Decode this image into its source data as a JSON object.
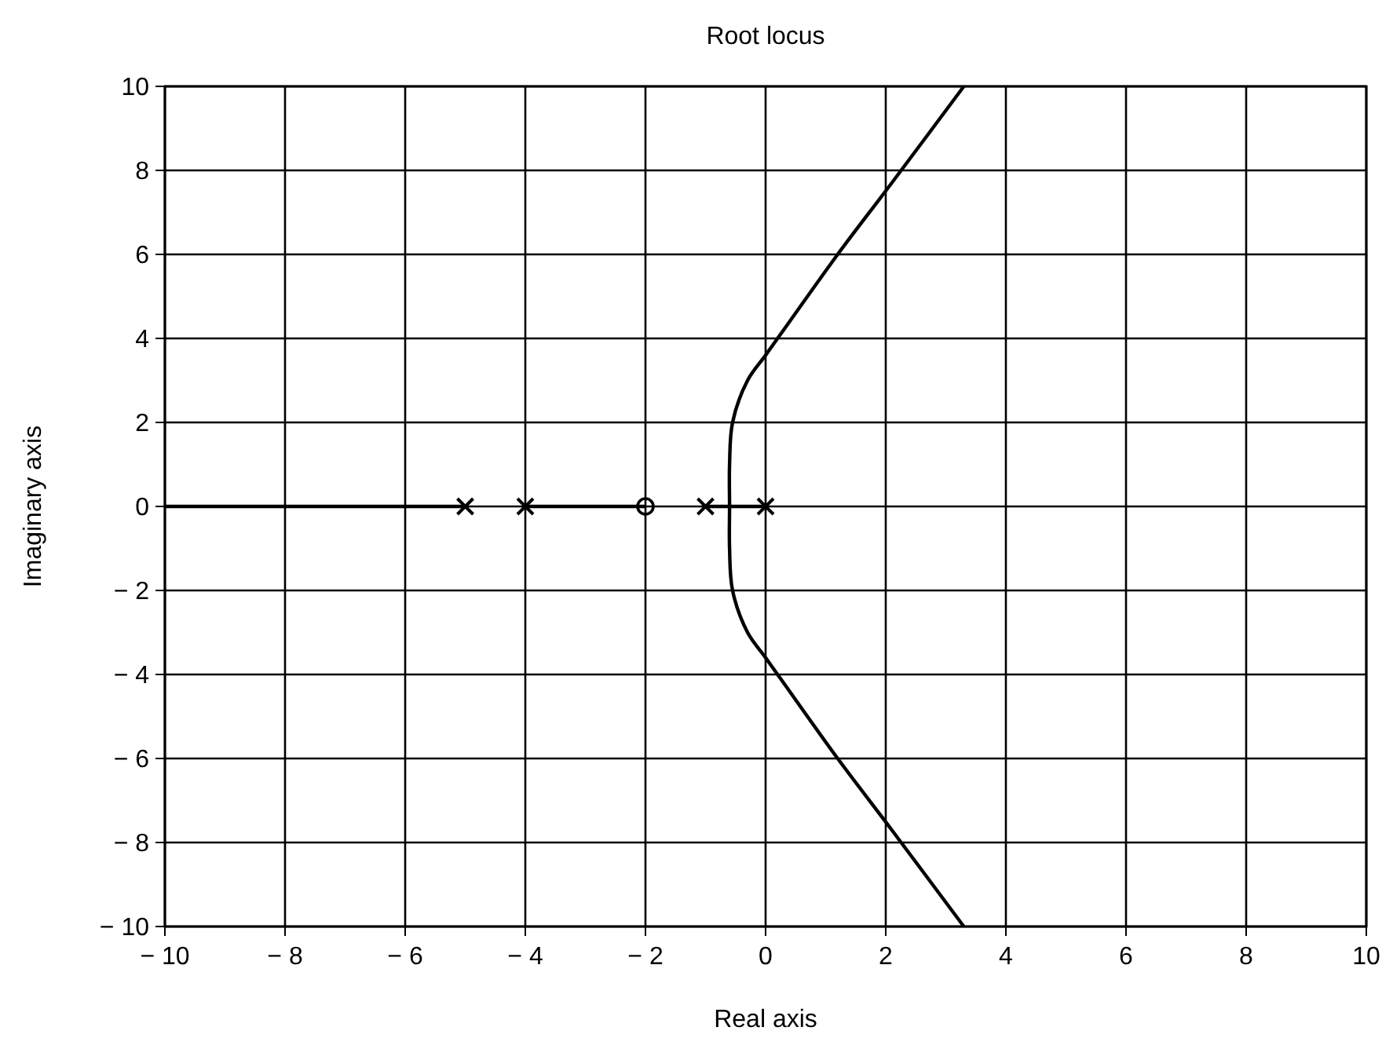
{
  "chart_data": {
    "type": "line",
    "title": "Root locus",
    "xlabel": "Real axis",
    "ylabel": "Imaginary axis",
    "xlim": [
      -10,
      10
    ],
    "ylim": [
      -10,
      10
    ],
    "xticks": [
      -10,
      -8,
      -6,
      -4,
      -2,
      0,
      2,
      4,
      6,
      8,
      10
    ],
    "yticks": [
      -10,
      -8,
      -6,
      -4,
      -2,
      0,
      2,
      4,
      6,
      8,
      10
    ],
    "grid": true,
    "series": [
      {
        "color": "#000000",
        "marker": "none",
        "x": [
          -10,
          -5,
          -4.5,
          -4,
          -2,
          -1.5,
          -1,
          0
        ],
        "values": [
          0,
          0,
          null,
          0,
          0,
          null,
          0,
          0
        ]
      },
      {
        "color": "#000000",
        "marker": "none",
        "x": [
          3.3,
          2.1,
          1.2,
          0.3,
          0,
          -0.3,
          -0.55,
          -0.6,
          -0.6,
          -0.6,
          -0.55,
          -0.3,
          0,
          0.3,
          1.2,
          2.1,
          3.3
        ],
        "values": [
          -10,
          -7.7,
          -6,
          -4.2,
          -3.6,
          -3,
          -2,
          -1,
          0,
          1,
          2,
          3,
          3.6,
          4.2,
          6,
          7.7,
          10
        ]
      },
      {
        "type": "scatter",
        "color": "#000000",
        "marker": "cross",
        "x": [
          -5,
          -4,
          -1,
          0
        ],
        "values": [
          0,
          0,
          0,
          0
        ]
      },
      {
        "type": "scatter",
        "color": "#000000",
        "marker": "circle",
        "x": [
          -2
        ],
        "values": [
          0
        ]
      }
    ]
  }
}
